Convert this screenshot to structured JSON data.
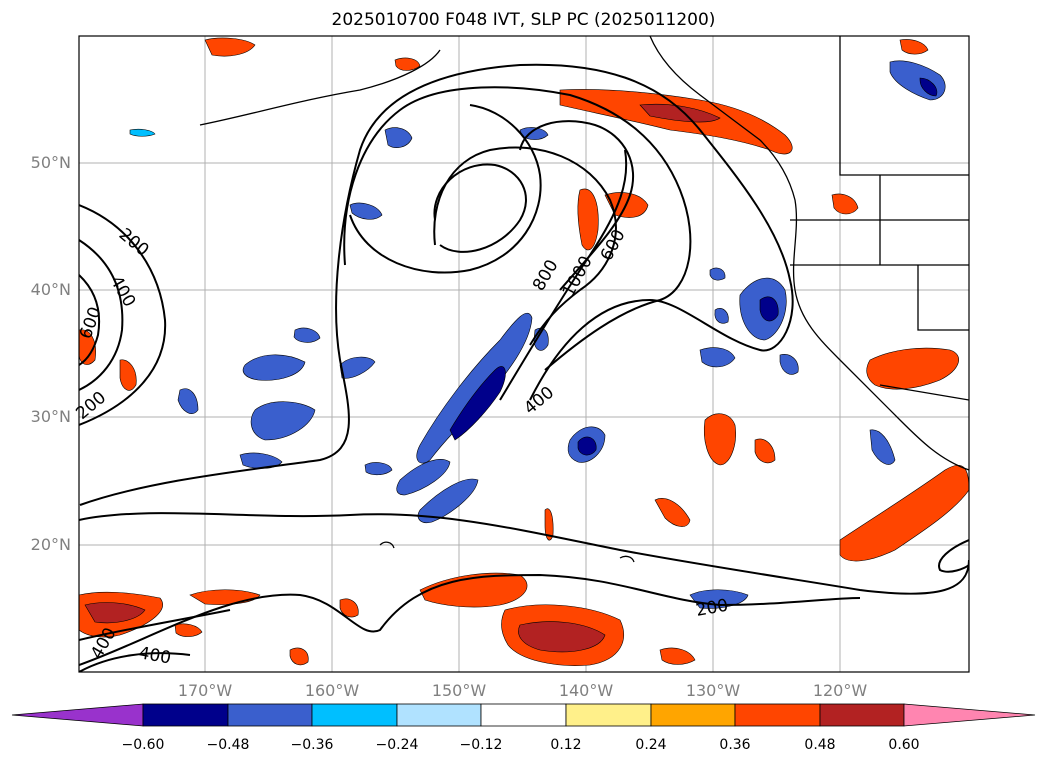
{
  "title": "2025010700 F048 IVT, SLP PC (2025011200)",
  "map": {
    "lat_labels": [
      "50°N",
      "40°N",
      "30°N",
      "20°N"
    ],
    "lon_labels": [
      "170°W",
      "160°W",
      "150°W",
      "140°W",
      "130°W",
      "120°W"
    ],
    "contour_labels": [
      "200",
      "400",
      "600",
      "800",
      "1000",
      "600",
      "400",
      "200",
      "400",
      "200",
      "400"
    ]
  },
  "colorbar": {
    "tick_labels": [
      "−0.60",
      "−0.48",
      "−0.36",
      "−0.24",
      "−0.12",
      "0.12",
      "0.24",
      "0.36",
      "0.48",
      "0.60"
    ],
    "colors": [
      "#9932cc",
      "#00008b",
      "#3a5fcd",
      "#00bfff",
      "#b0e2ff",
      "#ffffff",
      "#fff08a",
      "#ffa500",
      "#ff4500",
      "#b22222",
      "#ff85b0"
    ]
  }
}
